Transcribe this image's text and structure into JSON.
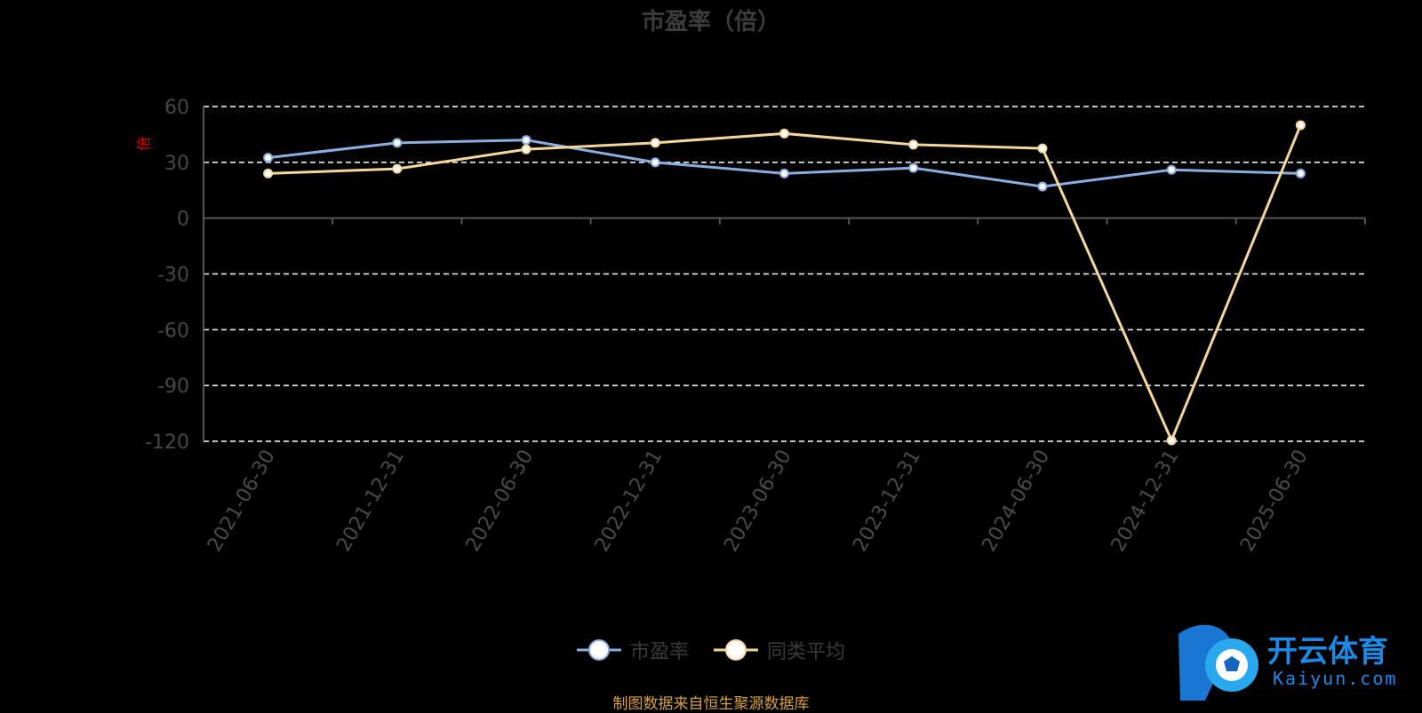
{
  "chart_data": {
    "type": "line",
    "title": "市盈率（倍）",
    "ylabel": "倍",
    "ylim": [
      -120,
      60
    ],
    "yticks": [
      60,
      30,
      0,
      -30,
      -60,
      -90,
      -120
    ],
    "categories": [
      "2021-06-30",
      "2021-12-31",
      "2022-06-30",
      "2022-12-31",
      "2023-06-30",
      "2023-12-31",
      "2024-06-30",
      "2024-12-31",
      "2025-06-30"
    ],
    "grid": true,
    "legend_position": "bottom",
    "series": [
      {
        "name": "市盈率",
        "color": "#8aaee0",
        "values": [
          32.5,
          40.5,
          42.0,
          30.0,
          24.0,
          27.0,
          17.0,
          26.0,
          24.0
        ]
      },
      {
        "name": "同类平均",
        "color": "#f4d79c",
        "values": [
          24.0,
          26.5,
          37.0,
          40.5,
          45.5,
          39.5,
          37.5,
          -119.5,
          50.0
        ]
      }
    ]
  },
  "source_text": "制图数据来自恒生聚源数据库",
  "watermark": {
    "brand": "开云体育",
    "domain": "Kaiyun.com"
  }
}
